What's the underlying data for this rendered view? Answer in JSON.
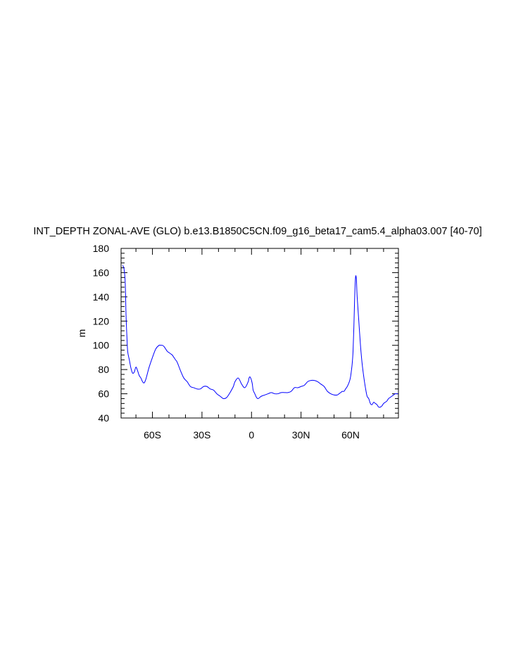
{
  "chart_data": {
    "type": "line",
    "title": "INT_DEPTH ZONAL-AVE (GLO) b.e13.B1850C5CN.f09_g16_beta17_cam5.4_alpha03.007 [40-70]",
    "xlabel": "",
    "ylabel": "m",
    "xlim": [
      -79,
      89
    ],
    "ylim": [
      40,
      180
    ],
    "grid": false,
    "x_ticks": [
      {
        "value": -60,
        "label": "60S"
      },
      {
        "value": -30,
        "label": "30S"
      },
      {
        "value": 0,
        "label": "0"
      },
      {
        "value": 30,
        "label": "30N"
      },
      {
        "value": 60,
        "label": "60N"
      }
    ],
    "y_ticks": [
      {
        "value": 40,
        "label": "40"
      },
      {
        "value": 60,
        "label": "60"
      },
      {
        "value": 80,
        "label": "80"
      },
      {
        "value": 100,
        "label": "100"
      },
      {
        "value": 120,
        "label": "120"
      },
      {
        "value": 140,
        "label": "140"
      },
      {
        "value": 160,
        "label": "160"
      },
      {
        "value": 180,
        "label": "180"
      }
    ],
    "color": "#0000ff",
    "series": [
      {
        "x": [
          -78,
          -77.2,
          -76.5,
          -76,
          -75.5,
          -75,
          -74,
          -73,
          -72,
          -71,
          -70,
          -69,
          -68,
          -67,
          -66,
          -65,
          -64,
          -63,
          -62,
          -60,
          -58,
          -56,
          -55,
          -54,
          -53,
          -52,
          -51,
          -50,
          -49,
          -48,
          -47,
          -46,
          -45,
          -43,
          -41,
          -39,
          -37,
          -35,
          -33,
          -31,
          -29,
          -27,
          -25,
          -23,
          -21,
          -19,
          -17,
          -15,
          -13,
          -11,
          -10,
          -8,
          -6,
          -4,
          -2,
          -1.5,
          -1,
          -0.5,
          0,
          0.5,
          1,
          2,
          3,
          4,
          5,
          6,
          8,
          10,
          12,
          14,
          16,
          18,
          20,
          22,
          24,
          26,
          28,
          30,
          32,
          34,
          36,
          38,
          40,
          42,
          44,
          46,
          48,
          50,
          52,
          53,
          54,
          55,
          56,
          57,
          58,
          59,
          59.5,
          60,
          60.5,
          61,
          61.5,
          62,
          62.5,
          63,
          63.5,
          64,
          65,
          66,
          67,
          68,
          69,
          70,
          71,
          72,
          73,
          74,
          75,
          76,
          77,
          78,
          79,
          80,
          81,
          82,
          83,
          84,
          85,
          86,
          87,
          88,
          89
        ],
        "y": [
          166,
          163,
          152,
          125,
          108,
          95,
          88,
          81,
          77,
          78,
          82,
          79,
          75,
          73,
          70,
          69,
          72,
          77,
          82,
          90,
          97,
          100,
          100,
          100,
          99,
          97,
          95,
          94,
          93,
          92,
          90,
          88,
          86,
          79,
          73,
          70,
          66,
          65,
          64,
          64,
          66,
          66,
          64,
          63,
          60,
          58,
          56,
          57,
          61,
          66,
          70,
          73,
          68,
          65,
          70,
          73,
          74,
          73,
          71,
          68,
          63,
          60,
          57,
          56,
          57,
          58,
          59,
          60,
          61,
          60,
          60,
          61,
          61,
          61,
          62,
          65,
          65,
          66,
          67,
          70,
          71,
          71,
          70,
          68,
          66,
          62,
          60,
          59,
          59,
          60,
          61,
          62,
          62,
          64,
          66,
          69,
          71,
          74,
          79,
          85,
          95,
          115,
          140,
          156,
          155,
          140,
          120,
          100,
          85,
          74,
          65,
          58,
          56,
          52,
          51,
          53,
          52,
          51,
          49,
          49,
          50,
          52,
          53,
          54,
          56,
          57,
          58,
          59,
          60,
          60,
          60
        ]
      }
    ]
  }
}
